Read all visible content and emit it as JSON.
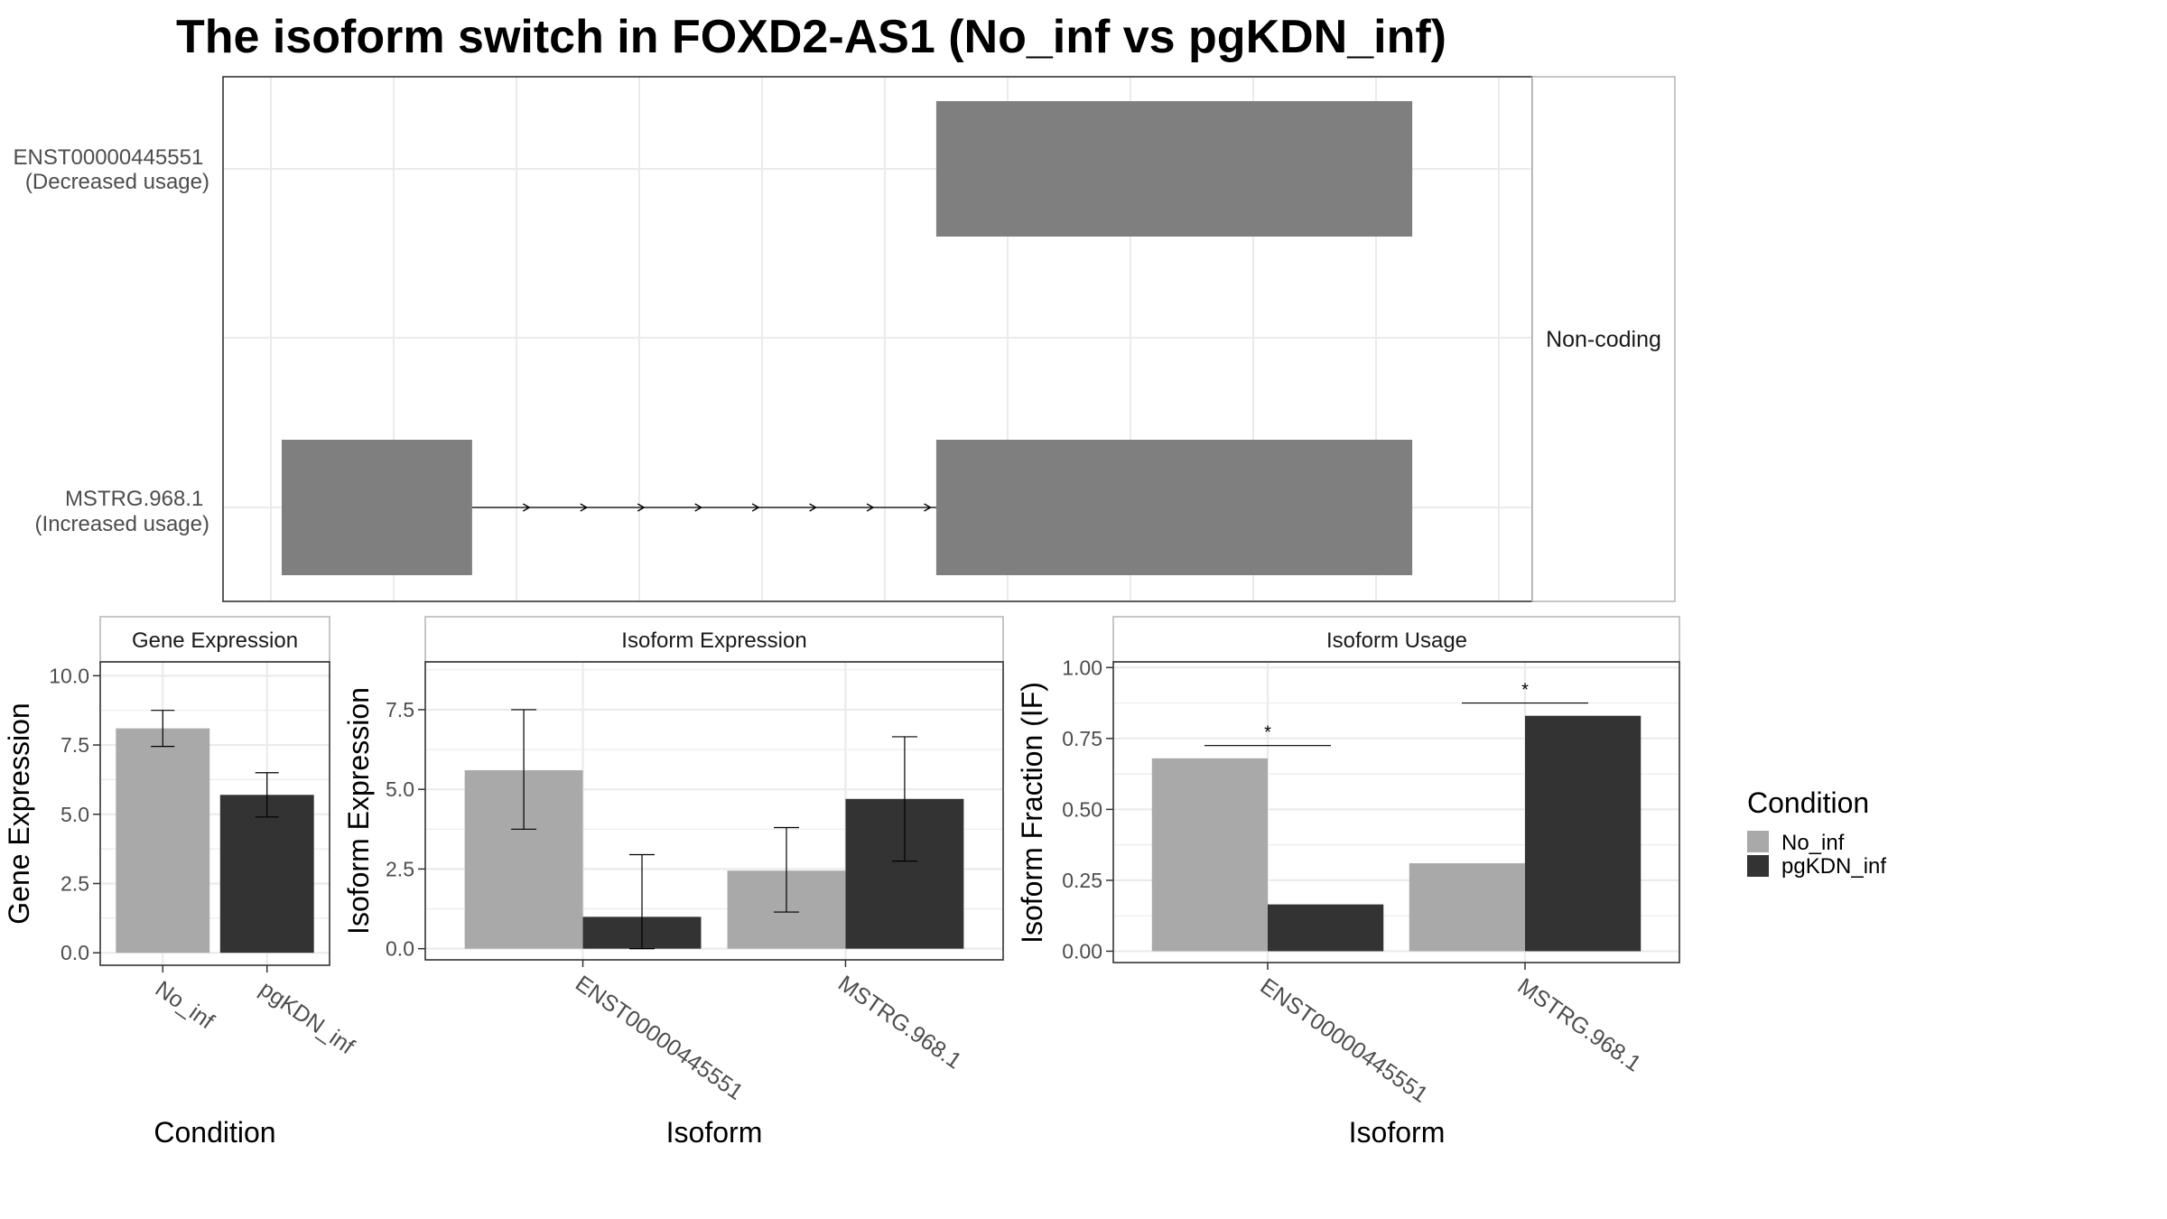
{
  "title": "The isoform switch in FOXD2-AS1 (No_inf vs pgKDN_inf)",
  "colors": {
    "No_inf": "#a9a9a9",
    "pgKDN_inf": "#333333",
    "exon": "#7f7f7f",
    "grid": "#ebebeb",
    "panel_border": "#333333",
    "strip_border": "#b3b3b3"
  },
  "chart_data": [
    {
      "type": "gene-structure",
      "strip_label": "Non-coding",
      "isoforms": [
        {
          "label": "ENST00000445551\n(Decreased usage)",
          "exons": [
            [
              0.55,
              0.95
            ]
          ],
          "intron_arrows": 0
        },
        {
          "label": "MSTRG.968.1\n(Increased usage)",
          "exons": [
            [
              0.0,
              0.16
            ],
            [
              0.55,
              0.95
            ]
          ],
          "intron_arrows": 8
        }
      ],
      "grid": true
    },
    {
      "type": "bar",
      "strip_title": "Gene Expression",
      "xlabel": "Condition",
      "ylabel": "Gene Expression",
      "categories": [
        "No_inf",
        "pgKDN_inf"
      ],
      "values": [
        8.1,
        5.7
      ],
      "error": [
        [
          7.45,
          8.75
        ],
        [
          4.9,
          6.5
        ]
      ],
      "ylim": [
        -0.45,
        10.5
      ],
      "yticks": [
        "0.0",
        "2.5",
        "5.0",
        "7.5",
        "10.0"
      ],
      "grid": true
    },
    {
      "type": "bar",
      "strip_title": "Isoform Expression",
      "xlabel": "Isoform",
      "ylabel": "Isoform Expression",
      "categories": [
        "ENST00000445551",
        "MSTRG.968.1"
      ],
      "series": [
        {
          "name": "No_inf",
          "values": [
            5.6,
            2.45
          ],
          "error": [
            [
              3.75,
              7.5
            ],
            [
              1.15,
              3.8
            ]
          ]
        },
        {
          "name": "pgKDN_inf",
          "values": [
            1.0,
            4.7
          ],
          "error": [
            [
              0.0,
              2.95
            ],
            [
              2.75,
              6.65
            ]
          ]
        }
      ],
      "ylim": [
        -0.35,
        9.0
      ],
      "yticks": [
        "0.0",
        "2.5",
        "5.0",
        "7.5"
      ],
      "grid": true
    },
    {
      "type": "bar",
      "strip_title": "Isoform Usage",
      "xlabel": "Isoform",
      "ylabel": "Isoform Fraction (IF)",
      "categories": [
        "ENST00000445551",
        "MSTRG.968.1"
      ],
      "series": [
        {
          "name": "No_inf",
          "values": [
            0.68,
            0.31
          ]
        },
        {
          "name": "pgKDN_inf",
          "values": [
            0.165,
            0.83
          ]
        }
      ],
      "significance": [
        "*",
        "*"
      ],
      "ylim": [
        -0.04,
        1.02
      ],
      "yticks": [
        "0.00",
        "0.25",
        "0.50",
        "0.75",
        "1.00"
      ],
      "grid": true
    }
  ],
  "legend": {
    "title": "Condition",
    "entries": [
      "No_inf",
      "pgKDN_inf"
    ],
    "position": "right"
  }
}
